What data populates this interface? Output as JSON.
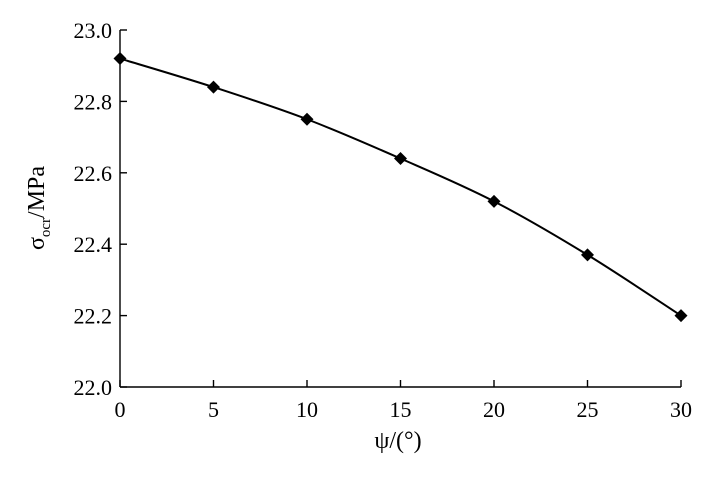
{
  "chart_data": {
    "type": "line",
    "x": [
      0,
      5,
      10,
      15,
      20,
      25,
      30
    ],
    "series": [
      {
        "values": [
          22.92,
          22.84,
          22.75,
          22.64,
          22.52,
          22.37,
          22.2
        ]
      }
    ],
    "x_ticks": [
      "0",
      "5",
      "10",
      "15",
      "20",
      "25",
      "30"
    ],
    "y_ticks": [
      "22.0",
      "22.2",
      "22.4",
      "22.6",
      "22.8",
      "23.0"
    ],
    "xlim": [
      0,
      30
    ],
    "ylim": [
      22.0,
      23.0
    ],
    "xlabel": "ψ/(°)",
    "ylabel": {
      "main": "σ",
      "sub": "ocr",
      "rest": "/MPa"
    },
    "marker": "diamond",
    "line_style": "smooth",
    "grid": false,
    "colors": {
      "line": "#000000",
      "marker": "#000000"
    }
  }
}
